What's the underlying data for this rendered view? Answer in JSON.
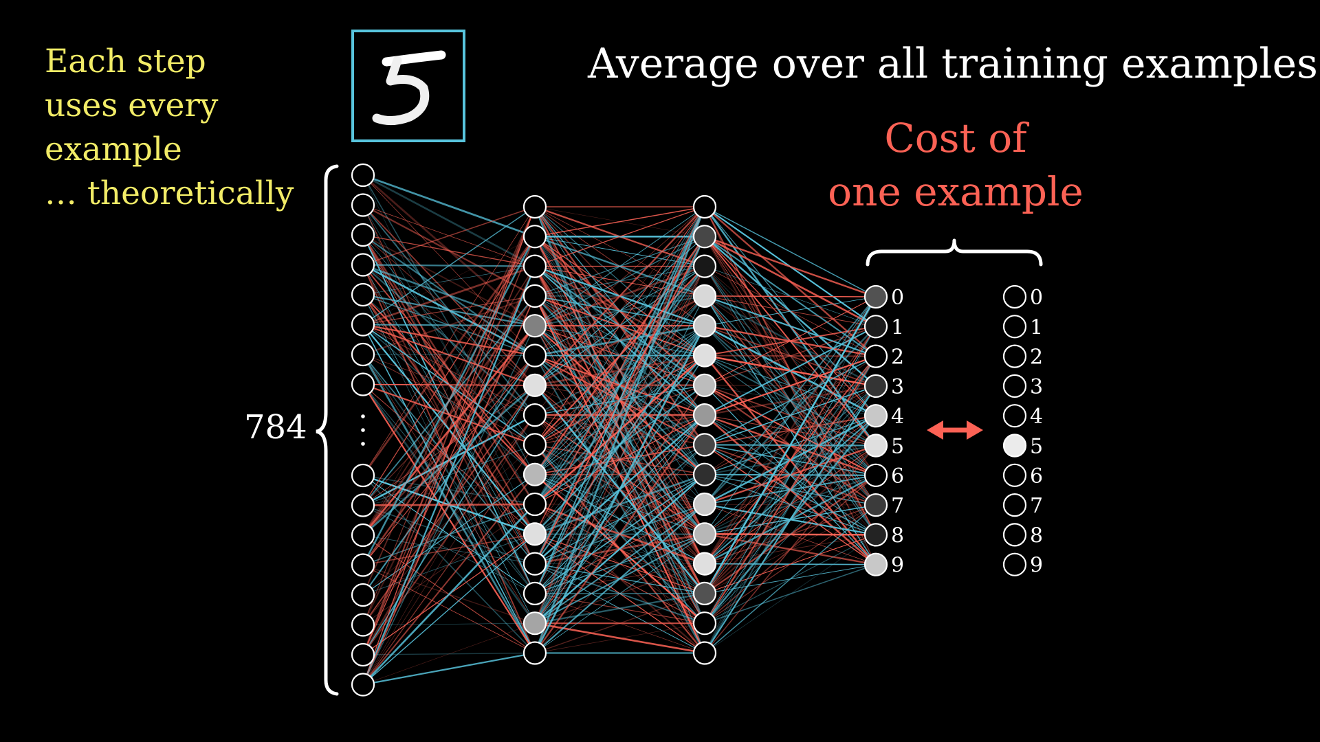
{
  "headline": "Average over all training examples",
  "side_note": {
    "lines": [
      "Each step",
      "uses every",
      "example",
      "… theoretically"
    ]
  },
  "cost_label": {
    "line1": "Cost of",
    "line2": "one example"
  },
  "input_count": "784",
  "input_thumbnail": {
    "depicts": "handwritten digit 5",
    "frame_color": "#58c4dd"
  },
  "network": {
    "input_layer": {
      "top_visible": 8,
      "bottom_visible": 8,
      "ellipsis": "⋮"
    },
    "hidden_layer_1": {
      "activations": [
        0,
        0,
        0,
        0,
        0.55,
        0,
        0.95,
        0,
        0,
        0.78,
        0,
        0.95,
        0,
        0,
        0.7,
        0
      ]
    },
    "hidden_layer_2": {
      "activations": [
        0,
        0.3,
        0.1,
        0.92,
        0.85,
        0.95,
        0.8,
        0.65,
        0.3,
        0.2,
        0.85,
        0.78,
        0.95,
        0.35,
        0,
        0
      ]
    },
    "output_layer": {
      "labels": [
        "0",
        "1",
        "2",
        "3",
        "4",
        "5",
        "6",
        "7",
        "8",
        "9"
      ],
      "activations": [
        0.35,
        0.12,
        0,
        0.22,
        0.85,
        0.95,
        0,
        0.25,
        0.15,
        0.85
      ]
    },
    "target_layer": {
      "labels": [
        "0",
        "1",
        "2",
        "3",
        "4",
        "5",
        "6",
        "7",
        "8",
        "9"
      ],
      "activations": [
        0,
        0,
        0,
        0,
        0,
        1,
        0,
        0,
        0,
        0
      ]
    },
    "colors": {
      "positive_weight": "#58c4dd",
      "negative_weight": "#fc6255",
      "node_stroke": "#ffffff"
    }
  },
  "compare_arrow_color": "#fc6255"
}
